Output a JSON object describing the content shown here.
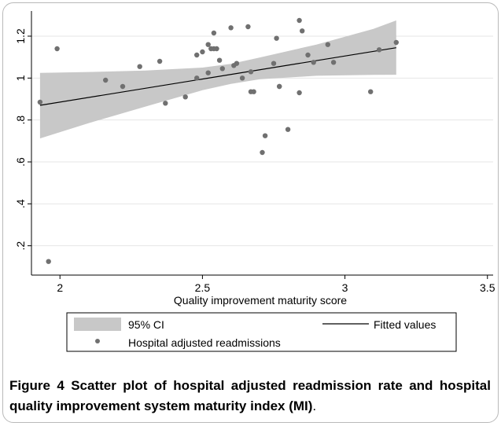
{
  "chart_data": {
    "type": "scatter",
    "xlabel": "Quality improvement maturity score",
    "ylabel": "",
    "xlim": [
      1.9,
      3.52
    ],
    "ylim": [
      0.06,
      1.32
    ],
    "x_ticks": [
      {
        "value": 2,
        "label": "2"
      },
      {
        "value": 2.5,
        "label": "2.5"
      },
      {
        "value": 3,
        "label": "3"
      },
      {
        "value": 3.5,
        "label": "3.5"
      }
    ],
    "y_ticks": [
      {
        "value": 0.2,
        "label": ".2"
      },
      {
        "value": 0.4,
        "label": ".4"
      },
      {
        "value": 0.6,
        "label": ".6"
      },
      {
        "value": 0.8,
        "label": ".8"
      },
      {
        "value": 1.0,
        "label": "1"
      },
      {
        "value": 1.2,
        "label": "1.2"
      }
    ],
    "grid": true,
    "legend_position": "bottom",
    "legend": {
      "ci_label": "95% CI",
      "fitted_label": "Fitted values",
      "points_label": "Hospital adjusted readmissions"
    },
    "fitted_line": {
      "x": [
        1.93,
        3.18
      ],
      "y": [
        0.87,
        1.145
      ]
    },
    "ci_band": {
      "x": [
        1.93,
        2.1,
        2.3,
        2.5,
        2.6,
        2.7,
        2.9,
        3.1,
        3.18
      ],
      "upper": [
        1.025,
        1.029,
        1.036,
        1.05,
        1.068,
        1.098,
        1.16,
        1.235,
        1.275
      ],
      "lower": [
        0.712,
        0.785,
        0.864,
        0.942,
        0.972,
        0.994,
        1.011,
        1.015,
        1.016
      ]
    },
    "series": [
      {
        "name": "Hospital adjusted readmissions",
        "x": [
          1.93,
          1.96,
          1.99,
          2.16,
          2.22,
          2.28,
          2.35,
          2.37,
          2.44,
          2.48,
          2.48,
          2.5,
          2.52,
          2.52,
          2.53,
          2.54,
          2.54,
          2.55,
          2.56,
          2.57,
          2.6,
          2.61,
          2.62,
          2.64,
          2.66,
          2.67,
          2.67,
          2.68,
          2.71,
          2.72,
          2.75,
          2.76,
          2.77,
          2.77,
          2.8,
          2.84,
          2.84,
          2.85,
          2.87,
          2.89,
          2.94,
          2.96,
          3.09,
          3.12,
          3.18
        ],
        "y": [
          0.885,
          0.125,
          1.14,
          0.99,
          0.96,
          1.055,
          1.08,
          0.88,
          0.91,
          1.11,
          1.0,
          1.125,
          1.16,
          1.025,
          1.14,
          1.14,
          1.215,
          1.14,
          1.085,
          1.045,
          1.24,
          1.06,
          1.07,
          1.0,
          1.245,
          1.03,
          0.935,
          0.935,
          0.645,
          0.725,
          1.07,
          1.19,
          0.96,
          0.96,
          0.755,
          1.275,
          0.93,
          1.225,
          1.11,
          1.075,
          1.16,
          1.075,
          0.935,
          1.135,
          1.17
        ]
      }
    ]
  },
  "caption": {
    "label": "Figure 4",
    "text": " Scatter plot of hospital adjusted readmission rate and hospital quality improvement system maturity index (MI)",
    "end": "."
  },
  "colors": {
    "band": "#c8c8c8",
    "point": "#707070",
    "line": "#000000",
    "grid": "#e6e6e6"
  }
}
